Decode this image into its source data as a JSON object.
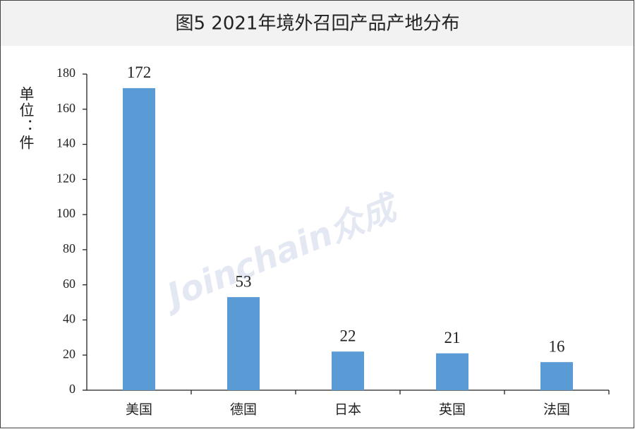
{
  "chart_data": {
    "type": "bar",
    "title": "图5 2021年境外召回产品产地分布",
    "y_label": "单位：件",
    "watermark": "Joinchain众成",
    "categories": [
      "美国",
      "德国",
      "日本",
      "英国",
      "法国"
    ],
    "values": [
      172,
      53,
      22,
      21,
      16
    ],
    "color": "#5b9bd5",
    "ylim": [
      0,
      180
    ],
    "yticks": [
      0,
      20,
      40,
      60,
      80,
      100,
      120,
      140,
      160,
      180
    ],
    "grid": false
  }
}
